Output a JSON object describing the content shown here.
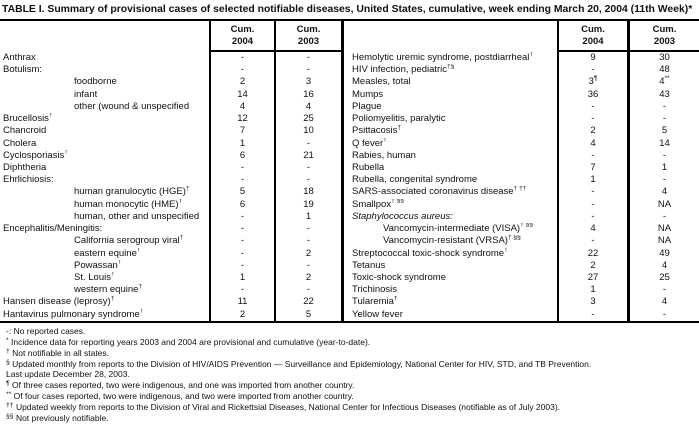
{
  "title": "TABLE I. Summary of provisional cases of selected notifiable diseases, United States, cumulative, week ending March 20, 2004 (11th Week)*",
  "header": {
    "cum_top": "Cum.",
    "y2004": "2004",
    "y2003": "2003"
  },
  "colors": {
    "text": "#111111",
    "rule": "#000000",
    "background": "#ffffff"
  },
  "left_rows": [
    {
      "label": "Anthrax",
      "v04": "-",
      "v03": "-"
    },
    {
      "label": "Botulism:",
      "v04": "-",
      "v03": "-"
    },
    {
      "label": "foodborne",
      "indent": true,
      "v04": "2",
      "v03": "3"
    },
    {
      "label": "infant",
      "indent": true,
      "v04": "14",
      "v03": "16"
    },
    {
      "label": "other (wound & unspecified",
      "indent": true,
      "v04": "4",
      "v03": "4"
    },
    {
      "label": "Brucellosis",
      "sup": "†",
      "v04": "12",
      "v03": "25"
    },
    {
      "label": "Chancroid",
      "v04": "7",
      "v03": "10"
    },
    {
      "label": "Cholera",
      "v04": "1",
      "v03": "-"
    },
    {
      "label": "Cyclosporiasis",
      "sup": "†",
      "v04": "6",
      "v03": "21"
    },
    {
      "label": "Diphtheria",
      "v04": "-",
      "v03": "-"
    },
    {
      "label": "Ehrlichiosis:",
      "v04": "-",
      "v03": "-"
    },
    {
      "label": "human granulocytic (HGE)",
      "sup": "†",
      "indent": true,
      "v04": "5",
      "v03": "18"
    },
    {
      "label": "human monocytic (HME)",
      "sup": "†",
      "indent": true,
      "v04": "6",
      "v03": "19"
    },
    {
      "label": "human, other and unspecified",
      "indent": true,
      "v04": "-",
      "v03": "1"
    },
    {
      "label": "Encephalitis/Meningitis:",
      "v04": "-",
      "v03": "-"
    },
    {
      "label": "California serogroup viral",
      "sup": "†",
      "indent": true,
      "v04": "-",
      "v03": "-"
    },
    {
      "label": "eastern equine",
      "sup": "†",
      "indent": true,
      "v04": "-",
      "v03": "2"
    },
    {
      "label": "Powassan",
      "sup": "†",
      "indent": true,
      "v04": "-",
      "v03": "-"
    },
    {
      "label": "St. Louis",
      "sup": "†",
      "indent": true,
      "v04": "1",
      "v03": "2"
    },
    {
      "label": "western equine",
      "sup": "†",
      "indent": true,
      "v04": "-",
      "v03": "-"
    },
    {
      "label": "Hansen disease (leprosy)",
      "sup": "†",
      "v04": "11",
      "v03": "22"
    },
    {
      "label": "Hantavirus pulmonary syndrome",
      "sup": "†",
      "v04": "2",
      "v03": "5"
    }
  ],
  "right_rows": [
    {
      "label": "Hemolytic uremic syndrome, postdiarrheal",
      "sup": "†",
      "v04": "9",
      "v03": "30"
    },
    {
      "label": "HIV infection, pediatric",
      "sup": "†§",
      "v04": "-",
      "v03": "48"
    },
    {
      "label": "Measles, total",
      "v04": "3",
      "v04sup": "¶",
      "v03": "4",
      "v03sup": "**"
    },
    {
      "label": "Mumps",
      "v04": "36",
      "v03": "43"
    },
    {
      "label": "Plague",
      "v04": "-",
      "v03": "-"
    },
    {
      "label": "Poliomyelitis, paralytic",
      "v04": "-",
      "v03": "-"
    },
    {
      "label": "Psittacosis",
      "sup": "†",
      "v04": "2",
      "v03": "5"
    },
    {
      "label": "Q fever",
      "sup": "†",
      "v04": "4",
      "v03": "14"
    },
    {
      "label": "Rabies, human",
      "v04": "-",
      "v03": "-"
    },
    {
      "label": "Rubella",
      "v04": "7",
      "v03": "1"
    },
    {
      "label": "Rubella, congenital syndrome",
      "v04": "1",
      "v03": "-"
    },
    {
      "label": "SARS-associated coronavirus disease",
      "sup": "† ††",
      "v04": "-",
      "v03": "4"
    },
    {
      "label": "Smallpox",
      "sup": "† §§",
      "v04": "-",
      "v03": "NA"
    },
    {
      "label": "Staphylococcus aureus:",
      "italic": true,
      "v04": "-",
      "v03": "-"
    },
    {
      "label": "Vancomycin-intermediate (VISA)",
      "sup": "† §§",
      "indent": true,
      "v04": "4",
      "v03": "NA"
    },
    {
      "label": "Vancomycin-resistant (VRSA)",
      "sup": "† §§",
      "indent": true,
      "v04": "-",
      "v03": "NA"
    },
    {
      "label": "Streptococcal toxic-shock syndrome",
      "sup": "†",
      "v04": "22",
      "v03": "49"
    },
    {
      "label": "Tetanus",
      "v04": "2",
      "v03": "4"
    },
    {
      "label": "Toxic-shock syndrome",
      "v04": "27",
      "v03": "25"
    },
    {
      "label": "Trichinosis",
      "v04": "1",
      "v03": "-"
    },
    {
      "label": "Tularemia",
      "sup": "†",
      "v04": "3",
      "v03": "4"
    },
    {
      "label": "Yellow fever",
      "v04": "-",
      "v03": "-"
    }
  ],
  "footnotes": [
    {
      "marker": "-:",
      "raised": false,
      "text": "No reported cases."
    },
    {
      "marker": "*",
      "raised": true,
      "text": "Incidence data for reporting years 2003 and 2004 are provisional and cumulative (year-to-date)."
    },
    {
      "marker": "†",
      "raised": true,
      "text": "Not notifiable in all states."
    },
    {
      "marker": "§",
      "raised": true,
      "text": "Updated monthly from reports to the Division of HIV/AIDS Prevention — Surveillance and Epidemiology, National Center for HIV, STD, and TB Prevention."
    },
    {
      "marker": "",
      "raised": false,
      "text": "Last update December 28, 2003."
    },
    {
      "marker": "¶",
      "raised": true,
      "text": "Of three cases reported, two were indigenous, and one was imported from another country."
    },
    {
      "marker": "**",
      "raised": true,
      "text": "Of four cases reported, two were indigenous, and two were imported from another country."
    },
    {
      "marker": "††",
      "raised": true,
      "text": "Updated weekly from reports to the Division of Viral and Rickettsial Diseases, National Center for Infectious Diseases (notifiable as of July 2003)."
    },
    {
      "marker": "§§",
      "raised": true,
      "text": "Not previously notifiable."
    }
  ]
}
